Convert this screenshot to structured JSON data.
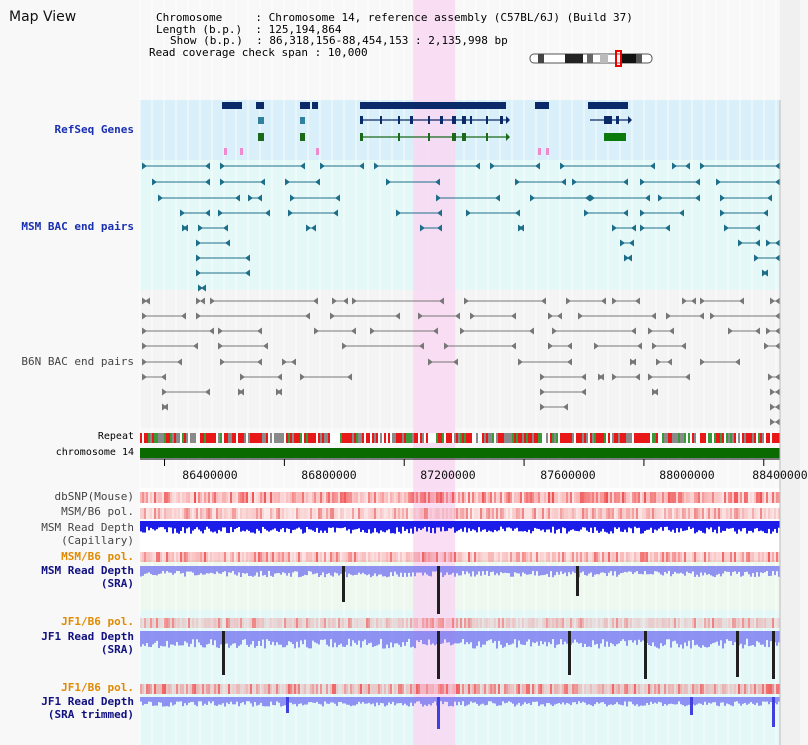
{
  "header": {
    "title": "Map View",
    "chromosome_key": "Chromosome",
    "chromosome_val": "Chromosome 14, reference assembly (C57BL/6J) (Build 37)",
    "length_key": "Length (b.p.)",
    "length_val": "125,194,864",
    "show_key": "Show (b.p.)",
    "show_val": "86,318,156-88,454,153 : 2,135,998 bp",
    "coverage_key": "Read coverage check span",
    "coverage_val": "10,000"
  },
  "tracks": {
    "refseq": "RefSeq Genes",
    "msm_bac": "MSM BAC end pairs",
    "b6n_bac": "B6N BAC end pairs",
    "repeat": "Repeat",
    "chromosome": "chromosome 14",
    "dbsnp": "dbSNP(Mouse)",
    "msm_b6_pol_1": "MSM/B6 pol.",
    "msm_depth_cap_1": "MSM Read Depth",
    "msm_depth_cap_2": "(Capillary)",
    "msm_b6_pol_2": "MSM/B6 pol.",
    "msm_depth_sra_1": "MSM Read Depth",
    "msm_depth_sra_2": "(SRA)",
    "jf1_b6_pol_1": "JF1/B6 pol.",
    "jf1_depth_sra_1": "JF1 Read Depth",
    "jf1_depth_sra_2": "(SRA)",
    "jf1_b6_pol_2": "JF1/B6 pol.",
    "jf1_depth_trim_1": "JF1 Read Depth",
    "jf1_depth_trim_2": "(SRA trimmed)"
  },
  "axis": {
    "ticks": [
      "86400000",
      "86800000",
      "87200000",
      "87600000",
      "88000000",
      "88400000"
    ],
    "tick_values": [
      86400000,
      86800000,
      87200000,
      87600000,
      88000000,
      88400000
    ],
    "view_start": 86318156,
    "view_end": 88454153
  },
  "highlight_region": {
    "start": 87230000,
    "end": 87370000
  },
  "colors": {
    "refseq_bg": "#d9f0fa",
    "bac_bg": "#e4f8f8",
    "b6n_bg": "#f4f4f4",
    "highlight": "#f8d8f2",
    "chromosome": "#0a6a00",
    "gene": "#0a2a6a",
    "msm_pair": "#1e6e8a",
    "b6n_pair": "#777777",
    "depth_dark": "#1010e8",
    "depth_light": "#7070f0",
    "snp": "#f07070"
  }
}
